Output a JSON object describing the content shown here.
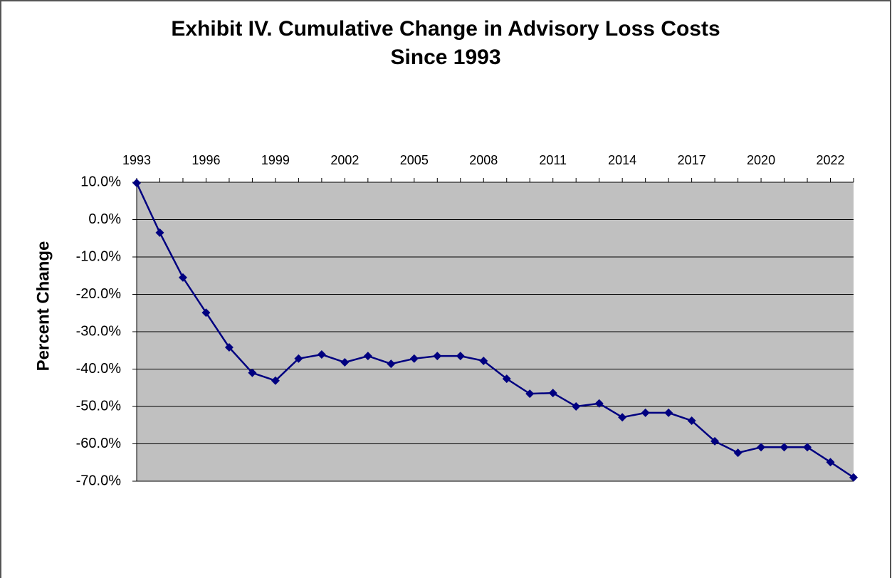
{
  "chart_data": {
    "type": "line",
    "title": [
      "Exhibit IV. Cumulative Change in Advisory Loss Costs",
      "Since 1993"
    ],
    "y_label": "Percent Change",
    "categories": [
      "1993",
      null,
      null,
      "1996",
      null,
      null,
      "1999",
      null,
      null,
      "2002",
      null,
      null,
      "2005",
      null,
      null,
      "2008",
      null,
      null,
      "2011",
      null,
      null,
      "2014",
      null,
      null,
      "2017",
      null,
      null,
      "2020",
      null,
      null,
      "2022",
      null
    ],
    "series": [
      {
        "name": "Cumulative Change",
        "color": "#000080",
        "values": [
          9.8,
          -3.5,
          -15.5,
          -24.9,
          -34.2,
          -41.0,
          -43.1,
          -37.2,
          -36.1,
          -38.2,
          -36.5,
          -38.6,
          -37.2,
          -36.5,
          -36.5,
          -37.8,
          -42.6,
          -46.6,
          -46.4,
          -50.0,
          -49.2,
          -52.9,
          -51.7,
          -51.7,
          -53.8,
          -59.3,
          -62.4,
          -60.9,
          -60.9,
          -60.9,
          -64.9,
          -69.0
        ]
      }
    ],
    "ylim": [
      -70,
      10
    ],
    "yticks": [
      {
        "value": -70,
        "label": "-70.0%"
      },
      {
        "value": -60,
        "label": "-60.0%"
      },
      {
        "value": -50,
        "label": "-50.0%"
      },
      {
        "value": -40,
        "label": "-40.0%"
      },
      {
        "value": -30,
        "label": "-30.0%"
      },
      {
        "value": -20,
        "label": "-20.0%"
      },
      {
        "value": -10,
        "label": "-10.0%"
      },
      {
        "value": 0,
        "label": "0.0%"
      },
      {
        "value": 10,
        "label": "10.0%"
      }
    ],
    "grid": true,
    "plot_background": "#c0c0c0"
  }
}
